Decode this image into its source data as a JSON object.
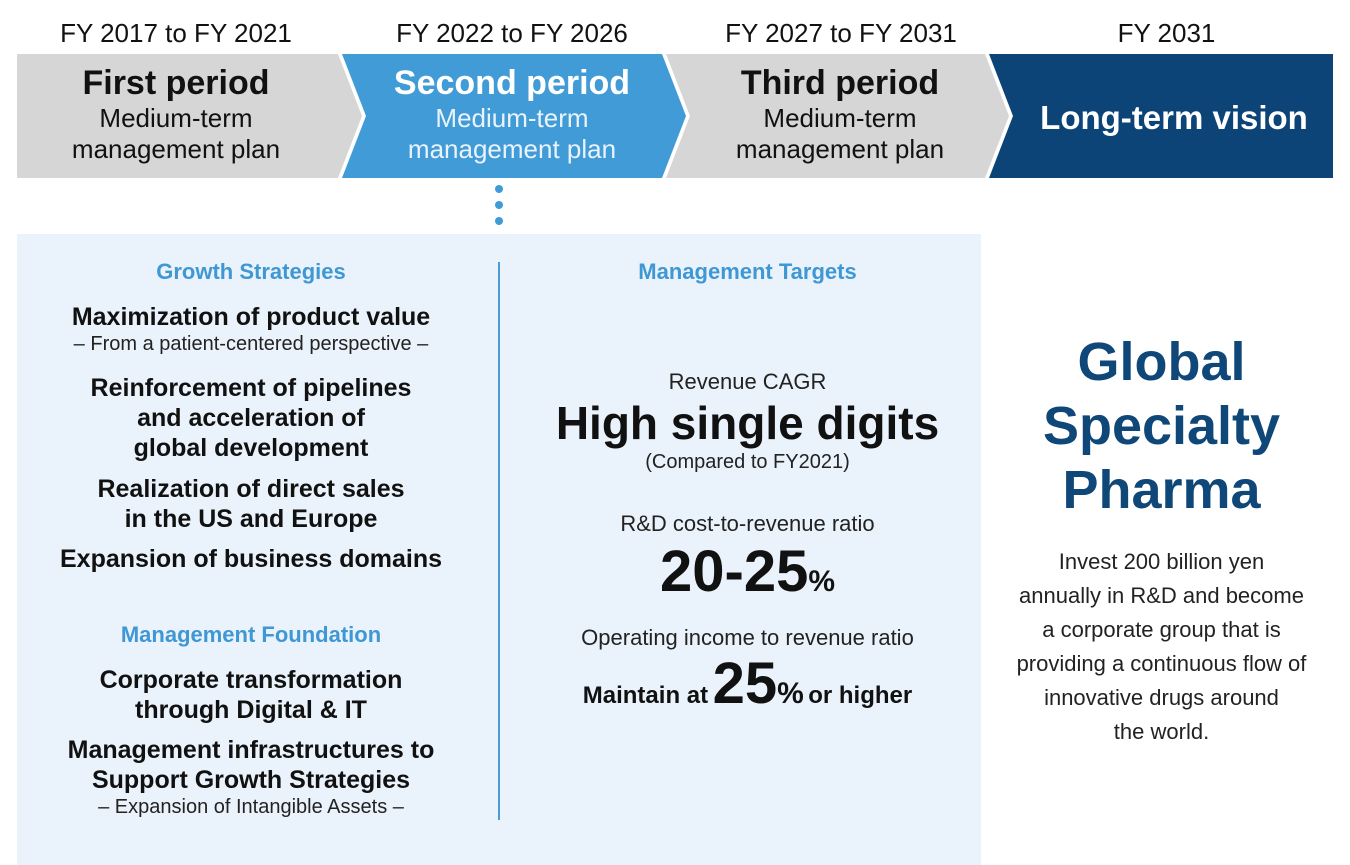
{
  "timeline": [
    {
      "years": "FY 2017 to FY 2021",
      "title": "First period",
      "subtitle_line1": "Medium-term",
      "subtitle_line2": "management plan"
    },
    {
      "years": "FY 2022 to FY 2026",
      "title": "Second period",
      "subtitle_line1": "Medium-term",
      "subtitle_line2": "management plan"
    },
    {
      "years": "FY 2027 to FY 2031",
      "title": "Third period",
      "subtitle_line1": "Medium-term",
      "subtitle_line2": "management plan"
    },
    {
      "years": "FY 2031",
      "title": "Long-term vision"
    }
  ],
  "colors": {
    "grey_chevron": "#d6d6d6",
    "blue_chevron": "#419bd7",
    "navy_chevron": "#0d4477",
    "panel_bg": "#eaf3fb",
    "accent_blue": "#3f97d4",
    "navy_text": "#0f4778"
  },
  "growth": {
    "heading": "Growth Strategies",
    "item1": "Maximization of product value",
    "item1_note": "– From a patient-centered perspective –",
    "item2_line1": "Reinforcement of pipelines",
    "item2_line2": "and acceleration of",
    "item2_line3": "global development",
    "item3_line1": "Realization of direct sales",
    "item3_line2": "in the US and Europe",
    "item4": "Expansion of business domains"
  },
  "foundation": {
    "heading": "Management Foundation",
    "item1_line1": "Corporate transformation",
    "item1_line2": "through Digital & IT",
    "item2_line1": "Management infrastructures to",
    "item2_line2": "Support Growth Strategies",
    "item2_note": "– Expansion of Intangible Assets –"
  },
  "targets": {
    "heading": "Management Targets",
    "cagr_label": "Revenue CAGR",
    "cagr_value": "High single digits",
    "cagr_note": "(Compared to FY2021)",
    "rd_label": "R&D cost-to-revenue ratio",
    "rd_value": "20-25",
    "rd_unit": "%",
    "op_label": "Operating income to revenue ratio",
    "op_prefix": "Maintain at",
    "op_value": "25",
    "op_unit": "%",
    "op_suffix": "or higher"
  },
  "vision": {
    "line1": "Global",
    "line2": "Specialty",
    "line3": "Pharma",
    "body_line1": "Invest 200 billion yen",
    "body_line2": "annually in R&D and become",
    "body_line3": "a corporate group that is",
    "body_line4": "providing a continuous flow of",
    "body_line5": "innovative drugs around",
    "body_line6": "the world."
  }
}
